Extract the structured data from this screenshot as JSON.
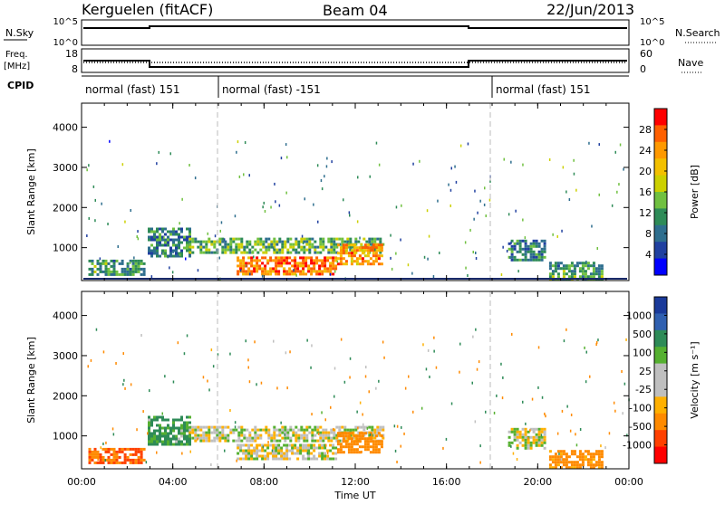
{
  "header": {
    "station": "Kerguelen (fitACF)",
    "beam": "Beam 04",
    "date": "22/Jun/2013"
  },
  "params": {
    "left_top_label": "N.Sky",
    "right_top_label": "N.Search",
    "top_left_ticks": [
      "10^5",
      "10^0"
    ],
    "top_right_ticks": [
      "10^5",
      "10^0"
    ],
    "freq_label_line1": "Freq.",
    "freq_label_line2": "[MHz]",
    "freq_ticks": [
      "18",
      "8"
    ],
    "nave_label": "Nave",
    "nave_ticks": [
      "60",
      "0"
    ],
    "cpid_label": "CPID",
    "cpid_segments": [
      {
        "label": "normal (fast) 151",
        "start_h": 0,
        "end_h": 6
      },
      {
        "label": "normal (fast) -151",
        "start_h": 6,
        "end_h": 18
      },
      {
        "label": "normal (fast) 151",
        "start_h": 18,
        "end_h": 24
      }
    ]
  },
  "chart_data": [
    {
      "type": "heatmap",
      "panel": "power",
      "ylabel": "Slant Range [km]",
      "ylim": [
        180,
        4600
      ],
      "yticks": [
        1000,
        2000,
        3000,
        4000
      ],
      "xlim_hours": [
        0,
        24
      ],
      "colorbar_label": "Power [dB]",
      "colorbar_ticks": [
        "28",
        "24",
        "20",
        "16",
        "12",
        "8",
        "4"
      ],
      "colorbar_colors": [
        "#ff0000",
        "#ff6000",
        "#ff9900",
        "#f3c000",
        "#ccd000",
        "#70c040",
        "#2e8b57",
        "#2e6e8e",
        "#2040a0",
        "#0000ff"
      ],
      "echo_regions": [
        {
          "t0": 0.3,
          "t1": 2.8,
          "r0": 300,
          "r1": 700,
          "value": 12
        },
        {
          "t0": 2.9,
          "t1": 4.7,
          "r0": 800,
          "r1": 1500,
          "value": 10
        },
        {
          "t0": 4.7,
          "t1": 13.2,
          "r0": 850,
          "r1": 1250,
          "value": 14
        },
        {
          "t0": 6.8,
          "t1": 11.2,
          "r0": 350,
          "r1": 780,
          "value": 26
        },
        {
          "t0": 11.2,
          "t1": 13.2,
          "r0": 600,
          "r1": 1100,
          "value": 24
        },
        {
          "t0": 18.7,
          "t1": 20.3,
          "r0": 700,
          "r1": 1200,
          "value": 10
        },
        {
          "t0": 20.5,
          "t1": 22.8,
          "r0": 200,
          "r1": 650,
          "value": 12
        }
      ]
    },
    {
      "type": "heatmap",
      "panel": "velocity",
      "ylabel": "Slant Range [km]",
      "ylim": [
        180,
        4600
      ],
      "yticks": [
        1000,
        2000,
        3000,
        4000
      ],
      "xlim_hours": [
        0,
        24
      ],
      "xticks": [
        "00:00",
        "04:00",
        "08:00",
        "12:00",
        "16:00",
        "20:00",
        "00:00"
      ],
      "xlabel": "Time UT",
      "colorbar_label": "Velocity [m s⁻¹]",
      "colorbar_ticks": [
        "1000",
        "500",
        "100",
        "25",
        "-25",
        "-100",
        "-500",
        "-1000"
      ],
      "colorbar_colors": [
        "#1a3a9a",
        "#3060b0",
        "#2e8b57",
        "#55b030",
        "#bfbfbf",
        "#bfbfbf",
        "#ffb000",
        "#ff8a00",
        "#ff4000",
        "#ff0000"
      ],
      "echo_regions": [
        {
          "t0": 0.3,
          "t1": 2.8,
          "r0": 300,
          "r1": 700,
          "value": -300
        },
        {
          "t0": 2.9,
          "t1": 4.7,
          "r0": 800,
          "r1": 1500,
          "value": 80
        },
        {
          "t0": 4.7,
          "t1": 13.2,
          "r0": 850,
          "r1": 1250,
          "value": 0
        },
        {
          "t0": 6.8,
          "t1": 11.2,
          "r0": 450,
          "r1": 800,
          "value": 0
        },
        {
          "t0": 11.2,
          "t1": 13.2,
          "r0": 600,
          "r1": 1100,
          "value": -150
        },
        {
          "t0": 18.7,
          "t1": 20.3,
          "r0": 700,
          "r1": 1200,
          "value": 0
        },
        {
          "t0": 20.5,
          "t1": 22.8,
          "r0": 200,
          "r1": 650,
          "value": -100
        }
      ]
    }
  ]
}
